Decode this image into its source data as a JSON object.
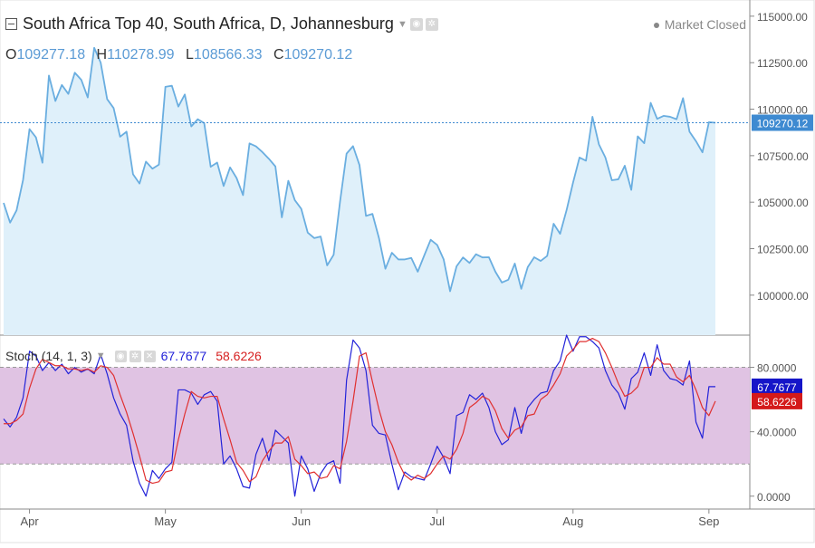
{
  "header": {
    "title": "South Africa Top 40, South Africa, D, Johannesburg",
    "market_status": "Market Closed"
  },
  "ohlc": {
    "o_label": "O",
    "o_value": "109277.18",
    "h_label": "H",
    "h_value": "110278.99",
    "l_label": "L",
    "l_value": "108566.33",
    "c_label": "C",
    "c_value": "109270.12"
  },
  "stoch_legend": {
    "name": "Stoch (14, 1, 3)",
    "k_value": "67.7677",
    "d_value": "58.6226"
  },
  "colors": {
    "price_line": "#6aaee0",
    "price_fill": "#dff0fa",
    "stoch_k": "#2323d9",
    "stoch_d": "#e03030",
    "stoch_band": "#e0c3e3",
    "last_price_tag": "#3e8ad1",
    "k_tag": "#1515c8",
    "d_tag": "#d41a1a"
  },
  "chart_data": [
    {
      "type": "area",
      "series_name": "South Africa Top 40",
      "x_ticks": [
        "Apr",
        "May",
        "Jun",
        "Jul",
        "Aug",
        "Sep"
      ],
      "x_tick_indices": [
        4,
        25,
        46,
        67,
        88,
        109
      ],
      "y_ticks": [
        "115000.00",
        "112500.00",
        "110000.00",
        "107500.00",
        "105000.00",
        "102500.00",
        "100000.00"
      ],
      "y_tick_values": [
        115000,
        112500,
        110000,
        107500,
        105000,
        102500,
        100000
      ],
      "ylim": [
        97850,
        115870
      ],
      "last_value": 109270.12,
      "last_value_label": "109270.12",
      "values": [
        104960,
        103900,
        104560,
        106190,
        108930,
        108480,
        107120,
        111810,
        110440,
        111300,
        110820,
        111960,
        111580,
        110630,
        113300,
        112500,
        110540,
        110060,
        108520,
        108790,
        106500,
        106000,
        107180,
        106800,
        107020,
        111200,
        111260,
        110140,
        110790,
        109070,
        109460,
        109250,
        106900,
        107130,
        105870,
        106870,
        106300,
        105380,
        108160,
        108000,
        107690,
        107330,
        106920,
        104180,
        106150,
        105110,
        104640,
        103360,
        103070,
        103150,
        101600,
        102170,
        105050,
        107610,
        108010,
        106990,
        104260,
        104370,
        103080,
        101420,
        102280,
        101920,
        101920,
        102000,
        101260,
        102130,
        102980,
        102700,
        101930,
        100210,
        101550,
        102030,
        101730,
        102200,
        102030,
        102040,
        101260,
        100680,
        100830,
        101700,
        100340,
        101510,
        102040,
        101840,
        102110,
        103840,
        103300,
        104570,
        106050,
        107400,
        107230,
        109590,
        108110,
        107400,
        106180,
        106230,
        106960,
        105660,
        108540,
        108170,
        110340,
        109480,
        109640,
        109590,
        109460,
        110590,
        108790,
        108280,
        107680,
        109300,
        109270
      ]
    },
    {
      "type": "line",
      "series": [
        {
          "name": "%K",
          "values": [
            48,
            43,
            49,
            61,
            90,
            87,
            78,
            83,
            78,
            82,
            76,
            80,
            77,
            79,
            76,
            88,
            76,
            61,
            51,
            44,
            22,
            8,
            0,
            16,
            11,
            17,
            21,
            66,
            66,
            64,
            57,
            63,
            65,
            59,
            20,
            25,
            17,
            6,
            5,
            26,
            36,
            22,
            41,
            37,
            33,
            0,
            25,
            17,
            3,
            14,
            20,
            22,
            8,
            72,
            97,
            92,
            78,
            44,
            39,
            38,
            20,
            4,
            15,
            12,
            11,
            10,
            20,
            31,
            24,
            14,
            50,
            52,
            63,
            60,
            64,
            55,
            40,
            32,
            35,
            55,
            39,
            55,
            60,
            64,
            65,
            78,
            84,
            100,
            90,
            99,
            99,
            96,
            92,
            78,
            69,
            64,
            54,
            73,
            77,
            89,
            75,
            94,
            78,
            73,
            72,
            69,
            84,
            46,
            36,
            68,
            68
          ]
        },
        {
          "name": "%D",
          "values": [
            45,
            45,
            47,
            51,
            67,
            79,
            85,
            83,
            81,
            81,
            79,
            79,
            78,
            79,
            77,
            81,
            80,
            75,
            63,
            52,
            39,
            25,
            10,
            8,
            9,
            15,
            16,
            35,
            51,
            65,
            62,
            61,
            62,
            62,
            48,
            35,
            21,
            16,
            9,
            12,
            22,
            28,
            33,
            33,
            37,
            23,
            19,
            14,
            15,
            11,
            12,
            19,
            17,
            34,
            59,
            87,
            89,
            71,
            54,
            40,
            32,
            21,
            13,
            10,
            13,
            11,
            14,
            20,
            25,
            23,
            29,
            39,
            55,
            58,
            62,
            60,
            53,
            42,
            36,
            41,
            43,
            50,
            51,
            60,
            63,
            69,
            76,
            87,
            91,
            96,
            96,
            98,
            96,
            89,
            80,
            70,
            62,
            64,
            68,
            80,
            80,
            86,
            82,
            82,
            74,
            71,
            75,
            66,
            55,
            50,
            59
          ]
        }
      ],
      "ylim": [
        -8,
        100
      ],
      "y_ticks": [
        "80.0000",
        "40.0000",
        "0.0000"
      ],
      "y_tick_values": [
        80,
        40,
        0
      ],
      "band_levels": [
        80,
        20
      ],
      "last_k_label": "67.7677",
      "last_d_label": "58.6226"
    }
  ]
}
